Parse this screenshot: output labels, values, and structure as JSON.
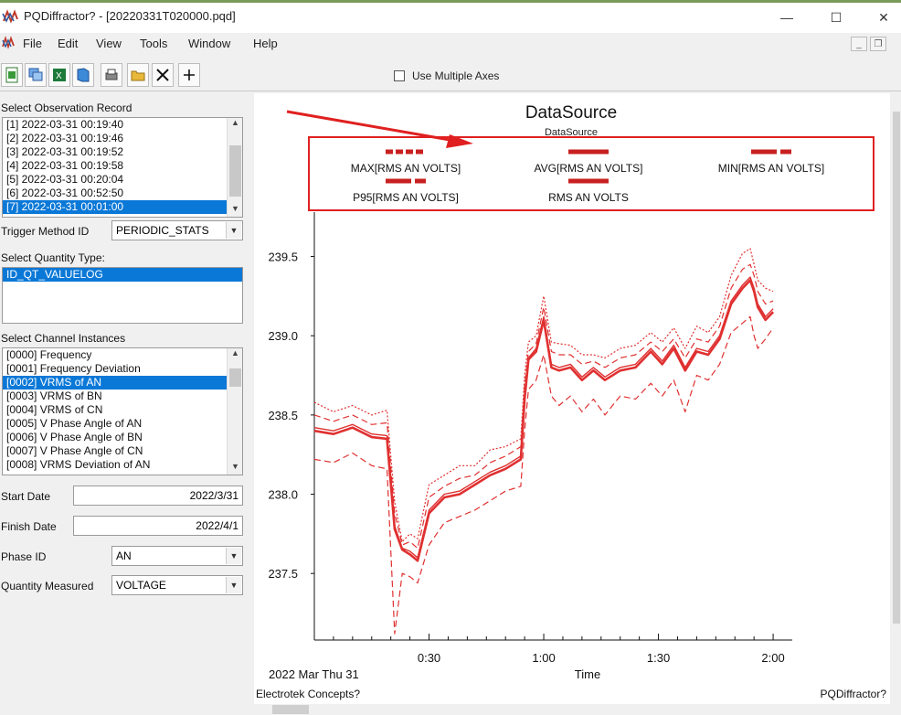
{
  "window": {
    "title": "PQDiffractor? - [20220331T020000.pqd]",
    "minimize_glyph": "—",
    "maximize_glyph": "☐",
    "close_glyph": "✕"
  },
  "menu": {
    "items": [
      "File",
      "Edit",
      "View",
      "Tools",
      "Window",
      "Help"
    ]
  },
  "toolbar": {
    "use_multiple_axes_label": "Use Multiple Axes",
    "use_multiple_axes_checked": false,
    "buttons": [
      "new-doc-icon",
      "windows-icon",
      "excel-icon",
      "book-icon",
      "print-icon",
      "folder-icon",
      "zoom-fit-icon",
      "add-icon"
    ]
  },
  "left": {
    "observation_label": "Select Observation Record",
    "observations": [
      "[1]  2022-03-31 00:19:40",
      "[2]  2022-03-31 00:19:46",
      "[3]  2022-03-31 00:19:52",
      "[4]  2022-03-31 00:19:58",
      "[5]  2022-03-31 00:20:04",
      "[6]  2022-03-31 00:52:50",
      "[7]  2022-03-31 00:01:00"
    ],
    "observation_selected": 6,
    "trigger_label": "Trigger Method ID",
    "trigger_value": "PERIODIC_STATS",
    "quantity_type_label": "Select Quantity Type:",
    "quantity_types": [
      "ID_QT_VALUELOG"
    ],
    "channel_label": "Select Channel Instances",
    "channels": [
      "[0000]  Frequency",
      "[0001]  Frequency Deviation",
      "[0002]  VRMS of AN",
      "[0003]  VRMS of BN",
      "[0004]  VRMS of CN",
      "[0005]  V Phase Angle of AN",
      "[0006]  V Phase Angle of BN",
      "[0007]  V Phase Angle of CN",
      "[0008]  VRMS Deviation of AN"
    ],
    "channel_selected": 2,
    "start_date_label": "Start Date",
    "start_date": "2022/3/31",
    "finish_date_label": "Finish Date",
    "finish_date": "2022/4/1",
    "phase_label": "Phase ID",
    "phase_value": "AN",
    "quantity_measured_label": "Quantity Measured",
    "quantity_measured_value": "VOLTAGE"
  },
  "chart": {
    "footer_left": "Electrotek Concepts?",
    "footer_right": "PQDiffractor?",
    "date_label": "2022 Mar Thu 31",
    "highlight_color": "#e02020"
  },
  "chart_data": {
    "type": "line",
    "title": "DataSource",
    "subtitle": "DataSource",
    "xlabel": "Time",
    "ylabel": "",
    "xlim": [
      0,
      125
    ],
    "ylim": [
      237.08,
      239.78
    ],
    "x_ticks": [
      {
        "v": 30,
        "label": "0:30"
      },
      {
        "v": 60,
        "label": "1:00"
      },
      {
        "v": 90,
        "label": "1:30"
      },
      {
        "v": 120,
        "label": "2:00"
      }
    ],
    "y_ticks": [
      {
        "v": 237.5,
        "label": "237.5"
      },
      {
        "v": 238.0,
        "label": "238.0"
      },
      {
        "v": 238.5,
        "label": "238.5"
      },
      {
        "v": 239.0,
        "label": "239.0"
      },
      {
        "v": 239.5,
        "label": "239.5"
      }
    ],
    "color": "#e03030",
    "legend_position": "top",
    "series": [
      {
        "name": "MAX[RMS AN VOLTS]",
        "style": "dotted",
        "x": [
          0,
          5,
          10,
          15,
          19,
          21,
          23,
          25,
          27,
          30,
          34,
          38,
          42,
          46,
          50,
          54,
          55,
          56,
          58,
          60,
          62,
          64,
          67,
          70,
          73,
          76,
          80,
          84,
          88,
          91,
          94,
          97,
          100,
          103,
          106,
          109,
          112,
          114,
          115,
          116,
          118,
          120
        ],
        "y": [
          238.58,
          238.52,
          238.56,
          238.5,
          238.53,
          237.95,
          237.7,
          237.75,
          237.72,
          238.06,
          238.12,
          238.18,
          238.18,
          238.28,
          238.3,
          238.35,
          238.75,
          238.96,
          239.0,
          239.25,
          238.96,
          238.95,
          238.94,
          238.88,
          238.88,
          238.86,
          238.92,
          238.94,
          239.02,
          238.96,
          239.05,
          238.92,
          239.06,
          239.02,
          239.12,
          239.38,
          239.52,
          239.55,
          239.45,
          239.35,
          239.3,
          239.28
        ]
      },
      {
        "name": "AVG[RMS AN VOLTS]",
        "style": "solid",
        "x": [
          0,
          5,
          10,
          15,
          19,
          21,
          23,
          25,
          27,
          30,
          34,
          38,
          42,
          46,
          50,
          54,
          55,
          56,
          58,
          60,
          62,
          64,
          67,
          70,
          73,
          76,
          80,
          84,
          88,
          91,
          94,
          97,
          100,
          103,
          106,
          109,
          112,
          114,
          115,
          116,
          118,
          120
        ],
        "y": [
          238.4,
          238.38,
          238.42,
          238.36,
          238.35,
          237.78,
          237.65,
          237.62,
          237.58,
          237.88,
          237.98,
          238.0,
          238.06,
          238.12,
          238.16,
          238.22,
          238.6,
          238.85,
          238.9,
          239.1,
          238.8,
          238.78,
          238.8,
          238.72,
          238.78,
          238.72,
          238.78,
          238.8,
          238.9,
          238.82,
          238.92,
          238.78,
          238.9,
          238.88,
          238.98,
          239.2,
          239.3,
          239.35,
          239.28,
          239.18,
          239.1,
          239.15
        ]
      },
      {
        "name": "MIN[RMS AN VOLTS]",
        "style": "dashed",
        "x": [
          0,
          5,
          10,
          15,
          19,
          21,
          23,
          25,
          27,
          30,
          34,
          38,
          42,
          46,
          50,
          54,
          55,
          56,
          58,
          60,
          62,
          64,
          67,
          70,
          73,
          76,
          80,
          84,
          88,
          91,
          94,
          97,
          100,
          103,
          106,
          109,
          112,
          114,
          115,
          116,
          118,
          120
        ],
        "y": [
          238.22,
          238.2,
          238.26,
          238.18,
          238.16,
          237.12,
          237.5,
          237.48,
          237.44,
          237.68,
          237.82,
          237.86,
          237.9,
          237.96,
          238.02,
          238.05,
          238.4,
          238.66,
          238.72,
          238.88,
          238.62,
          238.56,
          238.62,
          238.52,
          238.6,
          238.5,
          238.62,
          238.6,
          238.7,
          238.62,
          238.72,
          238.52,
          238.75,
          238.72,
          238.82,
          239.02,
          239.08,
          239.12,
          239.0,
          238.92,
          238.98,
          239.05
        ]
      },
      {
        "name": "P95[RMS AN VOLTS]",
        "style": "dashed",
        "x": [
          0,
          5,
          10,
          15,
          19,
          21,
          23,
          25,
          27,
          30,
          34,
          38,
          42,
          46,
          50,
          54,
          55,
          56,
          58,
          60,
          62,
          64,
          67,
          70,
          73,
          76,
          80,
          84,
          88,
          91,
          94,
          97,
          100,
          103,
          106,
          109,
          112,
          114,
          115,
          116,
          118,
          120
        ],
        "y": [
          238.5,
          238.46,
          238.5,
          238.44,
          238.45,
          237.88,
          237.68,
          237.7,
          237.66,
          237.98,
          238.05,
          238.1,
          238.12,
          238.2,
          238.24,
          238.3,
          238.68,
          238.9,
          238.95,
          239.18,
          238.9,
          238.88,
          238.88,
          238.82,
          238.84,
          238.8,
          238.86,
          238.88,
          238.96,
          238.9,
          238.98,
          238.86,
          238.98,
          238.96,
          239.06,
          239.3,
          239.42,
          239.45,
          239.38,
          239.28,
          239.2,
          239.22
        ]
      },
      {
        "name": "RMS AN VOLTS",
        "style": "solid",
        "x": [
          0,
          5,
          10,
          15,
          19,
          21,
          23,
          25,
          27,
          30,
          34,
          38,
          42,
          46,
          50,
          54,
          55,
          56,
          58,
          60,
          62,
          64,
          67,
          70,
          73,
          76,
          80,
          84,
          88,
          91,
          94,
          97,
          100,
          103,
          106,
          109,
          112,
          114,
          115,
          116,
          118,
          120
        ],
        "y": [
          238.42,
          238.4,
          238.44,
          238.38,
          238.37,
          237.8,
          237.66,
          237.64,
          237.6,
          237.9,
          238.0,
          238.02,
          238.08,
          238.14,
          238.18,
          238.24,
          238.62,
          238.86,
          238.92,
          239.12,
          238.82,
          238.8,
          238.82,
          238.74,
          238.8,
          238.74,
          238.8,
          238.82,
          238.92,
          238.84,
          238.94,
          238.8,
          238.92,
          238.9,
          239.0,
          239.22,
          239.32,
          239.37,
          239.3,
          239.2,
          239.12,
          239.17
        ]
      }
    ]
  }
}
